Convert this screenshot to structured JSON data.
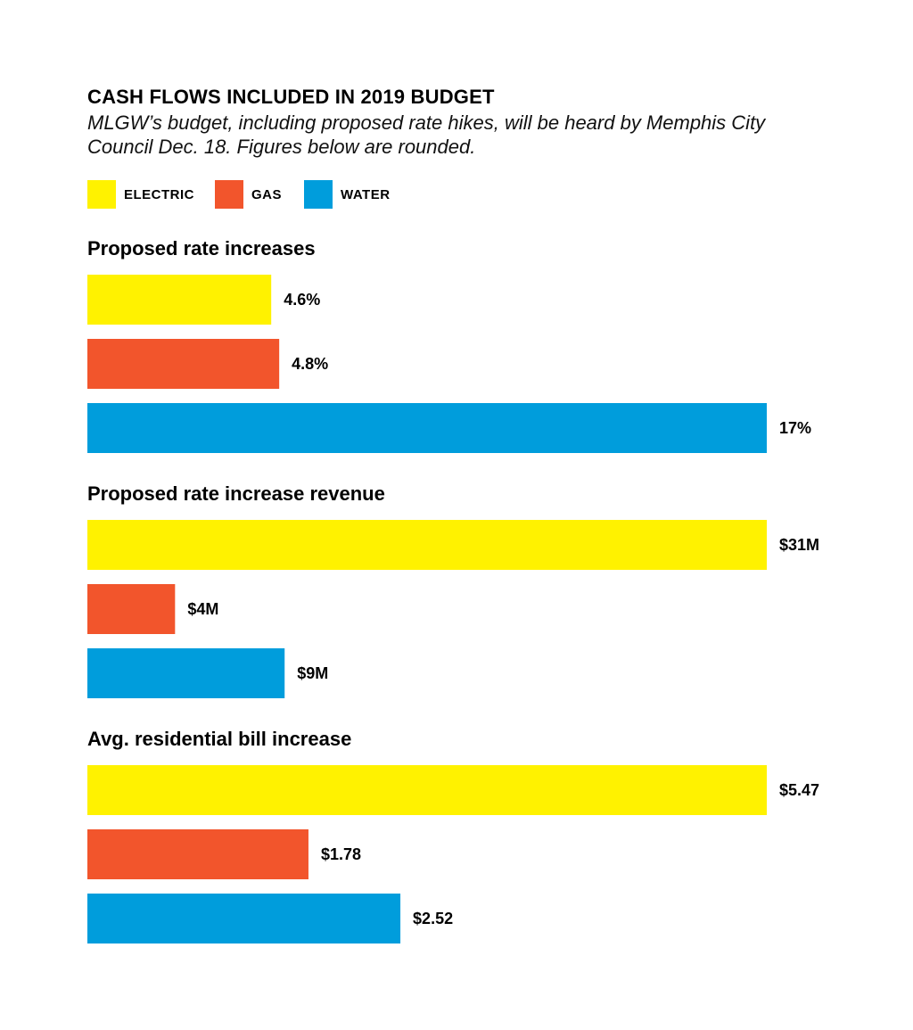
{
  "title": "CASH FLOWS INCLUDED IN 2019 BUDGET",
  "subtitle": "MLGW’s budget, including proposed rate hikes, will be heard by Memphis City Council Dec. 18. Figures below are rounded.",
  "legend": [
    {
      "label": "ELECTRIC",
      "color": "#FFF200"
    },
    {
      "label": "GAS",
      "color": "#F2552C"
    },
    {
      "label": "WATER",
      "color": "#009DDC"
    }
  ],
  "chart_data": [
    {
      "type": "bar",
      "orientation": "horizontal",
      "title": "Proposed rate increases",
      "categories": [
        "ELECTRIC",
        "GAS",
        "WATER"
      ],
      "values": [
        4.6,
        4.8,
        17
      ],
      "value_labels": [
        "4.6%",
        "4.8%",
        "17%"
      ],
      "xlim": [
        0,
        17
      ]
    },
    {
      "type": "bar",
      "orientation": "horizontal",
      "title": "Proposed rate increase revenue",
      "categories": [
        "ELECTRIC",
        "GAS",
        "WATER"
      ],
      "values": [
        31,
        4,
        9
      ],
      "value_labels": [
        "$31M",
        "$4M",
        "$9M"
      ],
      "xlim": [
        0,
        31
      ]
    },
    {
      "type": "bar",
      "orientation": "horizontal",
      "title": "Avg. residential bill increase",
      "categories": [
        "ELECTRIC",
        "GAS",
        "WATER"
      ],
      "values": [
        5.47,
        1.78,
        2.52
      ],
      "value_labels": [
        "$5.47",
        "$1.78",
        "$2.52"
      ],
      "xlim": [
        0,
        5.47
      ]
    }
  ]
}
